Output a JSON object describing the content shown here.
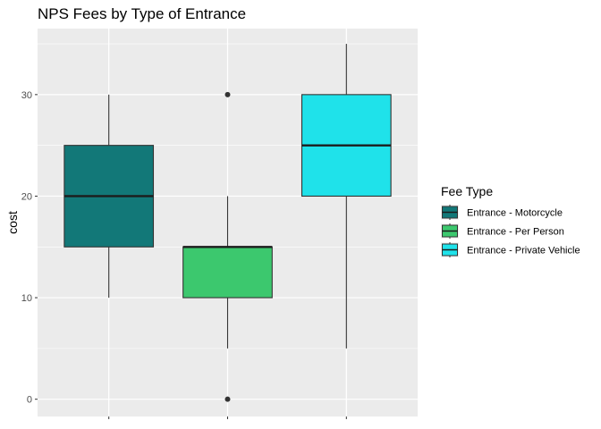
{
  "chart_data": {
    "type": "boxplot",
    "title": "NPS Fees by Type of Entrance",
    "xlabel": "",
    "ylabel": "cost",
    "ylim": [
      -1.7,
      36.5
    ],
    "yticks": [
      0,
      10,
      20,
      30
    ],
    "grid": true,
    "legend": {
      "title": "Fee Type",
      "position": "right"
    },
    "series": [
      {
        "name": "Entrance - Motorcycle",
        "color": "#127878",
        "min": 10,
        "q1": 15,
        "median": 20,
        "q3": 25,
        "max": 30,
        "outliers": []
      },
      {
        "name": "Entrance - Per Person",
        "color": "#3cc86e",
        "min": 5,
        "q1": 10,
        "median": 15,
        "q3": 15,
        "max": 20,
        "outliers": [
          0,
          30
        ]
      },
      {
        "name": "Entrance - Private Vehicle",
        "color": "#1fe2ea",
        "min": 5,
        "q1": 20,
        "median": 25,
        "q3": 30,
        "max": 35,
        "outliers": []
      }
    ]
  }
}
